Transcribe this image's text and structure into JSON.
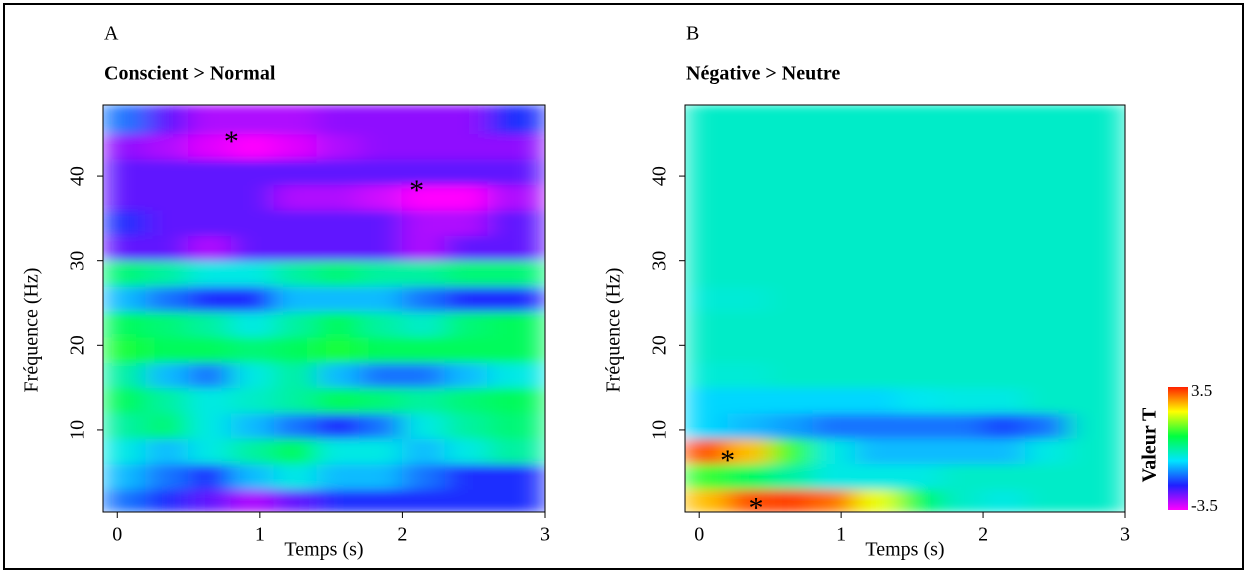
{
  "chart_data": [
    {
      "type": "heatmap",
      "panel_label": "A",
      "title": "Conscient > Normal",
      "xlabel": "Temps (s)",
      "ylabel": "Fréquence (Hz)",
      "xlim": [
        -0.1,
        3
      ],
      "ylim": [
        0.3,
        48.4
      ],
      "xticks": [
        0,
        1,
        2,
        3
      ],
      "yticks": [
        10,
        20,
        30,
        40
      ],
      "xbins": [
        -0.1,
        0.2,
        0.5,
        0.8,
        1.1,
        1.4,
        1.7,
        2.0,
        2.3,
        2.6,
        3.0
      ],
      "ybins": [
        0.3,
        3,
        6,
        9,
        12,
        15,
        18,
        21,
        24,
        27,
        30,
        33,
        36,
        39,
        42,
        45,
        48.4
      ],
      "zlim": [
        -3.5,
        3.5
      ],
      "colormap": [
        "#ff00ff",
        "#2020ff",
        "#00e5ff",
        "#00ff40",
        "#ffff00",
        "#ff2000"
      ],
      "z": [
        [
          -1.5,
          -2,
          -2.5,
          -3,
          -2.5,
          -2,
          -2,
          -2,
          -2,
          -2
        ],
        [
          -1,
          -1.5,
          -2,
          -1,
          -0.5,
          -1,
          -1,
          -1.5,
          -2,
          -2
        ],
        [
          -0.5,
          -1,
          -0.5,
          0,
          0.5,
          -0.5,
          -0.5,
          -1,
          -0.5,
          0
        ],
        [
          0,
          0.3,
          -0.5,
          -1,
          -1.5,
          -2,
          -1.5,
          -0.5,
          0,
          0.3
        ],
        [
          0.5,
          0,
          -0.5,
          -0.3,
          0,
          0.5,
          0.3,
          0,
          0.3,
          0.5
        ],
        [
          0,
          -1,
          -1.5,
          -0.5,
          0,
          -1,
          -1.5,
          -1.5,
          -1,
          -0.5
        ],
        [
          0.8,
          0.5,
          0.5,
          0.3,
          0.5,
          0.8,
          0.5,
          0.5,
          0.5,
          0.5
        ],
        [
          0.5,
          0.3,
          0,
          -0.5,
          0,
          0.5,
          0,
          -0.3,
          0.3,
          0.5
        ],
        [
          -1,
          -1.5,
          -2,
          -2,
          -1,
          -1,
          -1,
          -1.5,
          -2,
          -2
        ],
        [
          0.3,
          0,
          -0.5,
          -0.5,
          0,
          0.3,
          0,
          0,
          0.3,
          0.3
        ],
        [
          -2.5,
          -2.5,
          -3,
          -2.5,
          -2.5,
          -2.5,
          -2.5,
          -3,
          -2.5,
          -2.5
        ],
        [
          -2,
          -2.5,
          -2.5,
          -2.5,
          -2.5,
          -2.5,
          -2.5,
          -3,
          -3,
          -2.5
        ],
        [
          -2.5,
          -2.5,
          -2.5,
          -2.5,
          -3,
          -3,
          -3.2,
          -3.5,
          -3.5,
          -3
        ],
        [
          -2.5,
          -2.5,
          -2.5,
          -2.5,
          -2.5,
          -2.5,
          -2.5,
          -2.5,
          -2.5,
          -2.5
        ],
        [
          -2.8,
          -3,
          -3.3,
          -3.5,
          -3.3,
          -3,
          -2.8,
          -2.8,
          -2.8,
          -2.8
        ],
        [
          -1.5,
          -2.5,
          -3,
          -3,
          -3,
          -2.8,
          -2.8,
          -2.8,
          -2.8,
          -2
        ]
      ],
      "significance": [
        {
          "x": 0.8,
          "y": 44.5,
          "label": "*"
        },
        {
          "x": 2.1,
          "y": 38.7,
          "label": "*"
        }
      ]
    },
    {
      "type": "heatmap",
      "panel_label": "B",
      "title": "Négative > Neutre",
      "xlabel": "Temps (s)",
      "ylabel": "Fréquence (Hz)",
      "xlim": [
        -0.1,
        3
      ],
      "ylim": [
        0.3,
        48.4
      ],
      "xticks": [
        0,
        1,
        2,
        3
      ],
      "yticks": [
        10,
        20,
        30,
        40
      ],
      "xbins": [
        -0.1,
        0.2,
        0.5,
        0.8,
        1.1,
        1.4,
        1.7,
        2.0,
        2.3,
        2.6,
        3.0
      ],
      "ybins": [
        0.3,
        3,
        6,
        9,
        12,
        15,
        18,
        21,
        24,
        27,
        30,
        33,
        36,
        39,
        42,
        45,
        48.4
      ],
      "zlim": [
        -3.5,
        3.5
      ],
      "colormap": [
        "#ff00ff",
        "#2020ff",
        "#00e5ff",
        "#00ff40",
        "#ffff00",
        "#ff2000"
      ],
      "z": [
        [
          2.5,
          3.2,
          3.3,
          3,
          2,
          0.5,
          -0.3,
          -0.5,
          -0.3,
          -0.3
        ],
        [
          1,
          0.5,
          0,
          -0.5,
          -0.5,
          -0.5,
          -0.3,
          -0.3,
          -0.3,
          -0.3
        ],
        [
          3.2,
          2.5,
          1,
          -0.5,
          -1,
          -1,
          -1,
          -1,
          -0.5,
          -0.3
        ],
        [
          -0.8,
          -1,
          -1.2,
          -1.5,
          -1.5,
          -1.5,
          -1.5,
          -1.8,
          -1.5,
          -0.3
        ],
        [
          -0.8,
          -0.8,
          -0.8,
          -0.8,
          -0.8,
          -0.6,
          -0.5,
          -0.5,
          -0.3,
          -0.3
        ],
        [
          -0.4,
          -0.4,
          -0.3,
          -0.3,
          -0.3,
          -0.3,
          -0.3,
          -0.3,
          -0.3,
          -0.3
        ],
        [
          -0.3,
          -0.3,
          -0.3,
          -0.3,
          -0.3,
          -0.3,
          -0.3,
          -0.3,
          -0.3,
          -0.3
        ],
        [
          -0.3,
          -0.3,
          -0.3,
          -0.3,
          -0.3,
          -0.3,
          -0.3,
          -0.3,
          -0.3,
          -0.3
        ],
        [
          -0.4,
          -0.4,
          -0.3,
          -0.3,
          -0.3,
          -0.3,
          -0.3,
          -0.3,
          -0.3,
          -0.3
        ],
        [
          -0.3,
          -0.3,
          -0.3,
          -0.3,
          -0.3,
          -0.3,
          -0.3,
          -0.3,
          -0.3,
          -0.3
        ],
        [
          -0.3,
          -0.3,
          -0.3,
          -0.3,
          -0.3,
          -0.3,
          -0.3,
          -0.3,
          -0.3,
          -0.3
        ],
        [
          -0.3,
          -0.3,
          -0.3,
          -0.3,
          -0.3,
          -0.3,
          -0.3,
          -0.3,
          -0.3,
          -0.3
        ],
        [
          -0.3,
          -0.3,
          -0.3,
          -0.3,
          -0.3,
          -0.3,
          -0.3,
          -0.3,
          -0.3,
          -0.3
        ],
        [
          -0.3,
          -0.3,
          -0.3,
          -0.3,
          -0.3,
          -0.3,
          -0.3,
          -0.3,
          -0.3,
          -0.3
        ],
        [
          -0.3,
          -0.3,
          -0.3,
          -0.3,
          -0.3,
          -0.3,
          -0.3,
          -0.3,
          -0.3,
          -0.3
        ],
        [
          -0.3,
          -0.3,
          -0.3,
          -0.3,
          -0.3,
          -0.3,
          -0.3,
          -0.3,
          -0.3,
          -0.3
        ]
      ],
      "significance": [
        {
          "x": 0.2,
          "y": 6.8,
          "label": "*"
        },
        {
          "x": 0.4,
          "y": 1.2,
          "label": "*"
        }
      ],
      "colorbar": {
        "label": "Valeur T",
        "ticks": [
          -3.5,
          3.5
        ]
      }
    }
  ]
}
